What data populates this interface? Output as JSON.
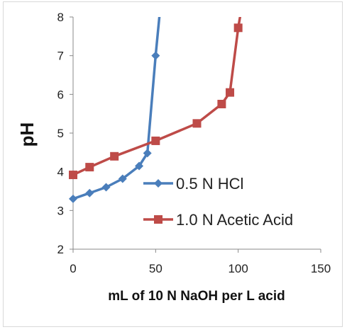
{
  "chart_data": {
    "type": "scatter",
    "xlabel": "mL of 10 N NaOH per L acid",
    "ylabel": "pH",
    "xlim": [
      0,
      150
    ],
    "ylim": [
      2,
      8
    ],
    "xticks": [
      "0",
      "50",
      "100",
      "150"
    ],
    "yticks": [
      "2",
      "3",
      "4",
      "5",
      "6",
      "7",
      "8"
    ],
    "grid": false,
    "legend": "right",
    "series": [
      {
        "name": "0.5 N HCl",
        "color": "#4a7ebb",
        "marker": "diamond",
        "x": [
          0,
          10,
          20,
          30,
          40,
          45,
          50
        ],
        "y": [
          3.3,
          3.45,
          3.6,
          3.82,
          4.15,
          4.48,
          7.0
        ],
        "tail": [
          [
            52.5,
            8.1
          ]
        ]
      },
      {
        "name": "1.0 N Acetic Acid",
        "color": "#be4b48",
        "marker": "square",
        "x": [
          0,
          10,
          25,
          50,
          75,
          90,
          95,
          100
        ],
        "y": [
          3.92,
          4.12,
          4.4,
          4.8,
          5.25,
          5.75,
          6.05,
          7.72
        ],
        "tail": [
          [
            101.5,
            8.1
          ]
        ]
      }
    ]
  }
}
